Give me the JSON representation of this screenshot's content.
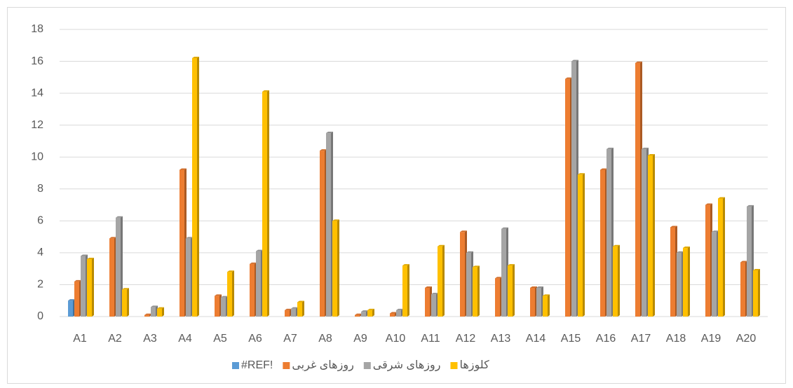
{
  "chart_data": {
    "type": "bar",
    "categories": [
      "A1",
      "A2",
      "A3",
      "A4",
      "A5",
      "A6",
      "A7",
      "A8",
      "A9",
      "A10",
      "A11",
      "A12",
      "A13",
      "A14",
      "A15",
      "A16",
      "A17",
      "A18",
      "A19",
      "A20"
    ],
    "series": [
      {
        "name": "#REF!",
        "color": "#5b9bd5",
        "values": [
          1,
          null,
          null,
          null,
          null,
          null,
          null,
          null,
          null,
          null,
          null,
          null,
          null,
          null,
          null,
          null,
          null,
          null,
          null,
          null
        ]
      },
      {
        "name": "روزهای غربی",
        "color": "#ed7d31",
        "values": [
          2.2,
          4.9,
          0.1,
          9.2,
          1.3,
          3.3,
          0.4,
          10.4,
          0.1,
          0.2,
          1.8,
          5.3,
          2.4,
          1.8,
          14.9,
          9.2,
          15.9,
          5.6,
          7.0,
          3.4
        ]
      },
      {
        "name": "روزهای شرقی",
        "color": "#a5a5a5",
        "values": [
          3.8,
          6.2,
          0.6,
          4.9,
          1.2,
          4.1,
          0.5,
          11.5,
          0.3,
          0.4,
          1.4,
          4.0,
          5.5,
          1.8,
          16.0,
          10.5,
          10.5,
          4.0,
          5.3,
          6.9
        ]
      },
      {
        "name": "کلوزها",
        "color": "#ffc000",
        "values": [
          3.6,
          1.7,
          0.5,
          16.2,
          2.8,
          14.1,
          0.9,
          6.0,
          0.4,
          3.2,
          4.4,
          3.1,
          3.2,
          1.3,
          8.9,
          4.4,
          10.1,
          4.3,
          7.4,
          2.9
        ]
      }
    ],
    "ylim": [
      0,
      18
    ],
    "yticks": [
      0,
      2,
      4,
      6,
      8,
      10,
      12,
      14,
      16,
      18
    ],
    "grid": true,
    "legend": "bottom"
  }
}
